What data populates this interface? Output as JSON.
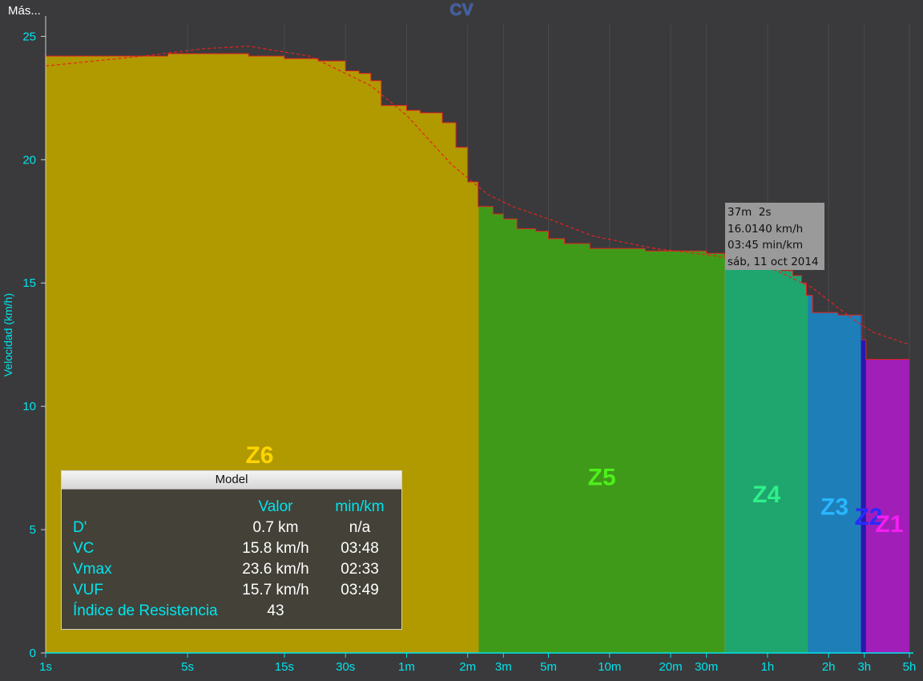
{
  "header": {
    "more_label": "Más...",
    "title": "CV"
  },
  "colors": {
    "background": "#3a3a3c",
    "axis": "#00e5ee",
    "curve": "#e82020",
    "model_curve": "#e82020",
    "z6": "#b09a00",
    "z5": "#3f9a1a",
    "z4": "#1fa56e",
    "z3": "#1e7eb8",
    "z2": "#2a17b0",
    "z1": "#a11fb8"
  },
  "hover": {
    "duration": "37m  2s",
    "speed": "16.0140 km/h",
    "pace": "03:45 min/km",
    "date": "sáb, 11 oct 2014"
  },
  "model": {
    "title": "Model",
    "col_value": "Valor",
    "col_pace": "min/km",
    "rows": [
      {
        "label": "D'",
        "value": "0.7 km",
        "pace": "n/a"
      },
      {
        "label": "VC",
        "value": "15.8 km/h",
        "pace": "03:48"
      },
      {
        "label": "Vmax",
        "value": "23.6 km/h",
        "pace": "02:33"
      },
      {
        "label": "VUF",
        "value": "15.7 km/h",
        "pace": "03:49"
      },
      {
        "label": "Índice de Resistencia",
        "value": "43",
        "pace": ""
      }
    ]
  },
  "chart_data": {
    "type": "area",
    "title": "CV",
    "ylabel": "Velocidad (km/h)",
    "ylim": [
      0,
      25.5
    ],
    "y_ticks": [
      0,
      5,
      10,
      15,
      20,
      25
    ],
    "x_scale": "log",
    "x_range_seconds": [
      1,
      18000
    ],
    "x_ticks": [
      {
        "label": "1s",
        "seconds": 1
      },
      {
        "label": "5s",
        "seconds": 5
      },
      {
        "label": "15s",
        "seconds": 15
      },
      {
        "label": "30s",
        "seconds": 30
      },
      {
        "label": "1m",
        "seconds": 60
      },
      {
        "label": "2m",
        "seconds": 120
      },
      {
        "label": "3m",
        "seconds": 180
      },
      {
        "label": "5m",
        "seconds": 300
      },
      {
        "label": "10m",
        "seconds": 600
      },
      {
        "label": "20m",
        "seconds": 1200
      },
      {
        "label": "30m",
        "seconds": 1800
      },
      {
        "label": "1h",
        "seconds": 3600
      },
      {
        "label": "2h",
        "seconds": 7200
      },
      {
        "label": "3h",
        "seconds": 10800
      },
      {
        "label": "5h",
        "seconds": 18000
      }
    ],
    "mean_max_speed": {
      "x_seconds": [
        1,
        4,
        6,
        10,
        15,
        22,
        30,
        35,
        40,
        45,
        60,
        70,
        90,
        105,
        120,
        135,
        160,
        180,
        210,
        260,
        300,
        360,
        480,
        600,
        900,
        1200,
        1800,
        2222,
        2800,
        3200,
        3700,
        4200,
        4800,
        5300,
        5600,
        6000,
        8000,
        10000,
        10300,
        10500,
        10800,
        11000,
        18000
      ],
      "y_kmh": [
        24.2,
        24.3,
        24.3,
        24.2,
        24.1,
        24.0,
        23.6,
        23.5,
        23.2,
        22.2,
        22.0,
        21.9,
        21.5,
        20.5,
        19.1,
        18.1,
        17.8,
        17.6,
        17.2,
        17.1,
        16.8,
        16.6,
        16.4,
        16.4,
        16.3,
        16.3,
        16.2,
        16.0,
        15.8,
        15.7,
        15.6,
        15.5,
        15.3,
        15.0,
        14.5,
        13.8,
        13.7,
        13.7,
        13.7,
        12.7,
        12.7,
        11.9,
        11.9
      ]
    },
    "model_curve": {
      "x_seconds": [
        1,
        3,
        6,
        10,
        20,
        40,
        60,
        100,
        150,
        200,
        300,
        500,
        1000,
        2000,
        3000,
        4000,
        6000,
        8000,
        10000,
        12000,
        18000
      ],
      "y_kmh": [
        23.8,
        24.2,
        24.5,
        24.6,
        24.2,
        23.0,
        21.8,
        19.8,
        18.6,
        18.1,
        17.6,
        16.9,
        16.4,
        16.1,
        15.8,
        15.5,
        14.8,
        14.0,
        13.4,
        13.0,
        12.5
      ]
    },
    "zones": [
      {
        "name": "Z6",
        "color": "#b09a00",
        "label_color": "#ffd400",
        "from_s": 1,
        "to_s": 136
      },
      {
        "name": "Z5",
        "color": "#3f9a1a",
        "label_color": "#4ef01a",
        "from_s": 136,
        "to_s": 2222
      },
      {
        "name": "Z4",
        "color": "#1fa56e",
        "label_color": "#2fef8a",
        "from_s": 2222,
        "to_s": 5700
      },
      {
        "name": "Z3",
        "color": "#1e7eb8",
        "label_color": "#29b6ff",
        "from_s": 5700,
        "to_s": 10400
      },
      {
        "name": "Z2",
        "color": "#2a17b0",
        "label_color": "#2a2aff",
        "from_s": 10400,
        "to_s": 11000
      },
      {
        "name": "Z1",
        "color": "#a11fb8",
        "label_color": "#f21ff2",
        "from_s": 11000,
        "to_s": 18000
      }
    ]
  }
}
